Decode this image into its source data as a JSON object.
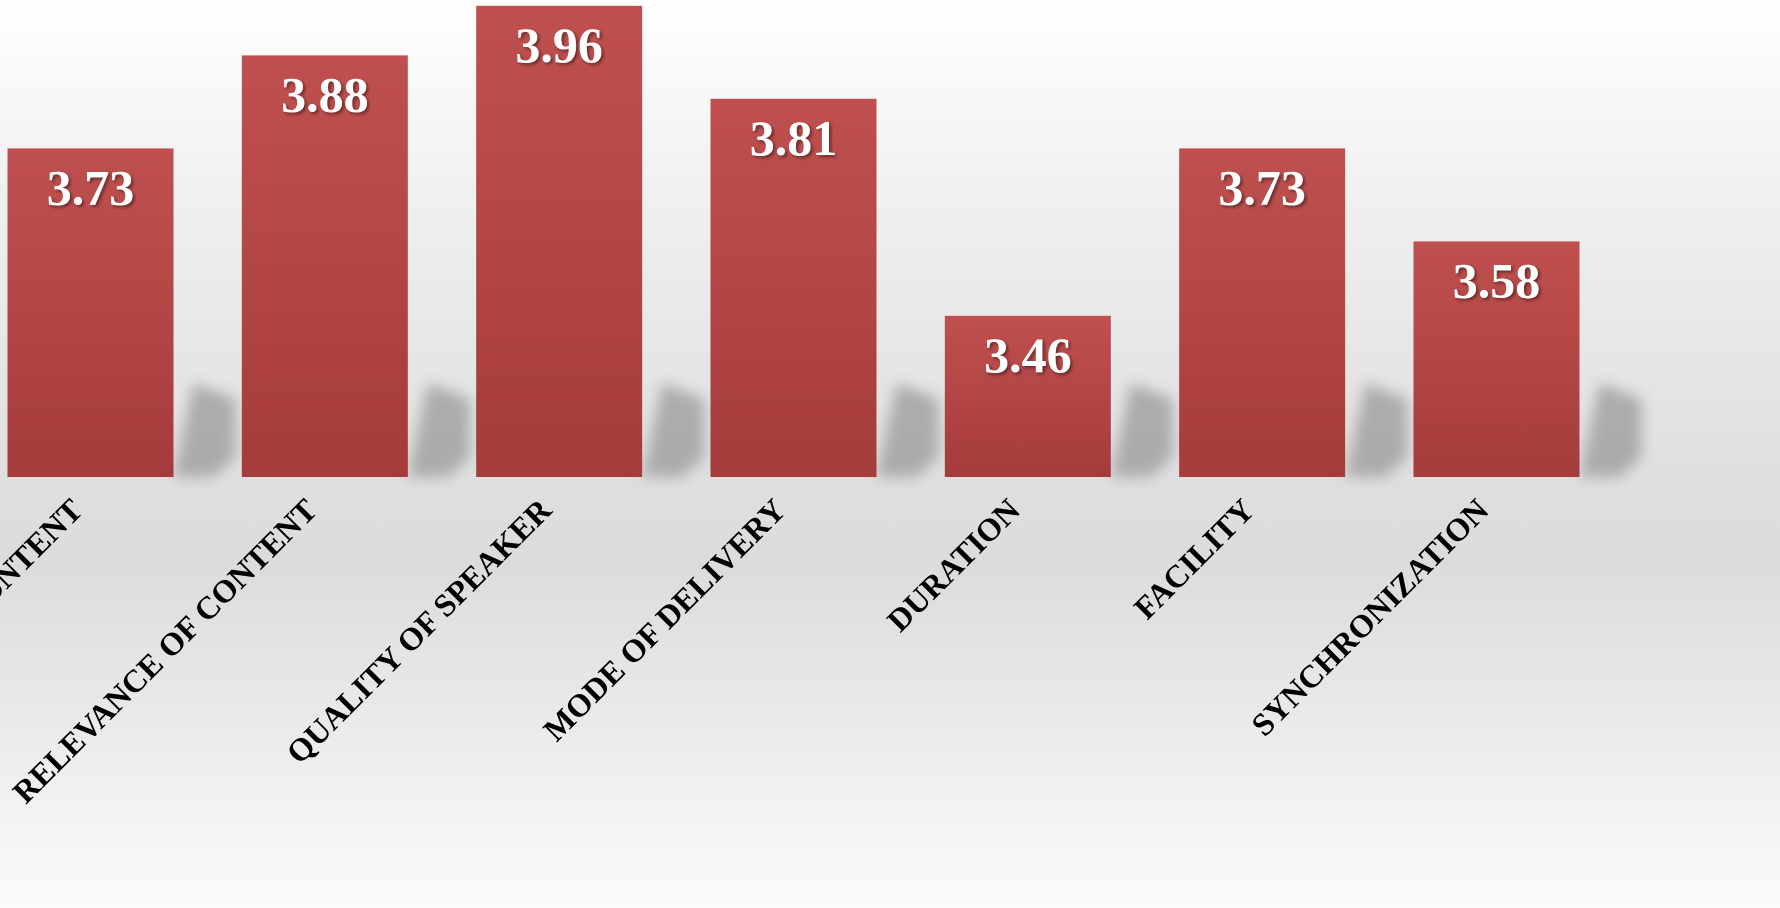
{
  "chart_data": {
    "type": "bar",
    "categories": [
      "CONTENT",
      "RELEVANCE OF CONTENT",
      "QUALITY OF SPEAKER",
      "MODE OF DELIVERY",
      "DURATION",
      "FACILITY",
      "SYNCHRONIZATION"
    ],
    "values": [
      3.73,
      3.88,
      3.96,
      3.81,
      3.46,
      3.73,
      3.58
    ],
    "data_labels": [
      "3.73",
      "3.88",
      "3.96",
      "3.81",
      "3.46",
      "3.73",
      "3.58"
    ],
    "ylim": [
      3.0,
      4.0
    ],
    "grid": false,
    "legend": "none",
    "colors": {
      "bar_top": "#c05050",
      "bar_bottom": "#a53b3b",
      "shadow": "#9a9a9a",
      "value_text": "#ffffff",
      "category_text": "#000000"
    }
  }
}
